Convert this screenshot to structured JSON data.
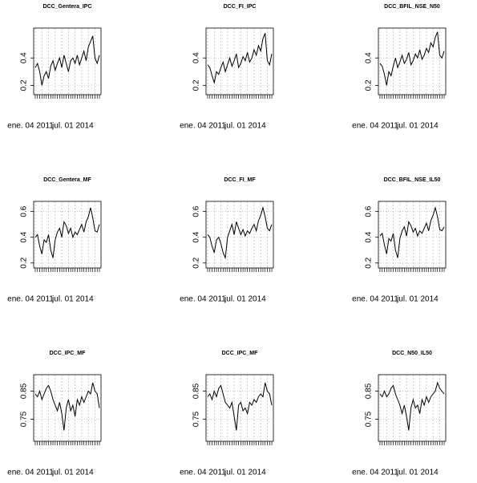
{
  "chart_data": [
    {
      "type": "line",
      "title": "DCC_Gentera_IPC",
      "color": "#000000",
      "grid": true,
      "ylim": [
        0.15,
        0.6
      ],
      "yticks": [
        0.2,
        0.4
      ],
      "categories": [
        "ene. 04 2011",
        null,
        null,
        null,
        null,
        null,
        null,
        null,
        null,
        null,
        null,
        null,
        null,
        null,
        null,
        null,
        null,
        "jul. 01 2014",
        null,
        null,
        null,
        null,
        null,
        null,
        null,
        null,
        null,
        null,
        null,
        null
      ],
      "values": [
        0.33,
        0.36,
        0.3,
        0.2,
        0.27,
        0.3,
        0.25,
        0.34,
        0.38,
        0.31,
        0.36,
        0.4,
        0.33,
        0.42,
        0.36,
        0.3,
        0.38,
        0.4,
        0.36,
        0.42,
        0.35,
        0.4,
        0.45,
        0.38,
        0.48,
        0.52,
        0.56,
        0.4,
        0.36,
        0.42
      ]
    },
    {
      "type": "line",
      "title": "DCC_FI_IPC",
      "color": "#000000",
      "grid": true,
      "ylim": [
        0.15,
        0.6
      ],
      "yticks": [
        0.2,
        0.4
      ],
      "categories": [
        "ene. 04 2011",
        null,
        null,
        null,
        null,
        null,
        null,
        null,
        null,
        null,
        null,
        null,
        null,
        null,
        null,
        null,
        null,
        "jul. 01 2014",
        null,
        null,
        null,
        null,
        null,
        null,
        null,
        null,
        null,
        null,
        null,
        null
      ],
      "values": [
        0.35,
        0.33,
        0.27,
        0.22,
        0.3,
        0.28,
        0.33,
        0.37,
        0.3,
        0.35,
        0.4,
        0.34,
        0.38,
        0.43,
        0.33,
        0.36,
        0.41,
        0.38,
        0.44,
        0.37,
        0.4,
        0.46,
        0.42,
        0.49,
        0.45,
        0.54,
        0.58,
        0.38,
        0.35,
        0.43
      ]
    },
    {
      "type": "line",
      "title": "DCC_BFIL_NSE_N50",
      "color": "#000000",
      "grid": true,
      "ylim": [
        0.15,
        0.6
      ],
      "yticks": [
        0.2,
        0.4
      ],
      "categories": [
        "ene. 04 2011",
        null,
        null,
        null,
        null,
        null,
        null,
        null,
        null,
        null,
        null,
        null,
        null,
        null,
        null,
        null,
        null,
        "jul. 01 2014",
        null,
        null,
        null,
        null,
        null,
        null,
        null,
        null,
        null,
        null,
        null,
        null
      ],
      "values": [
        0.36,
        0.34,
        0.28,
        0.2,
        0.3,
        0.27,
        0.34,
        0.4,
        0.33,
        0.37,
        0.42,
        0.36,
        0.39,
        0.44,
        0.35,
        0.38,
        0.43,
        0.4,
        0.46,
        0.39,
        0.42,
        0.47,
        0.44,
        0.51,
        0.48,
        0.55,
        0.59,
        0.42,
        0.4,
        0.45
      ]
    },
    {
      "type": "line",
      "title": "DCC_Gentera_MF",
      "color": "#000000",
      "grid": true,
      "ylim": [
        0.18,
        0.66
      ],
      "yticks": [
        0.2,
        0.4,
        0.6
      ],
      "categories": [
        "ene. 04 2011",
        null,
        null,
        null,
        null,
        null,
        null,
        null,
        null,
        null,
        null,
        null,
        null,
        null,
        null,
        null,
        null,
        "jul. 01 2014",
        null,
        null,
        null,
        null,
        null,
        null,
        null,
        null,
        null,
        null,
        null,
        null
      ],
      "values": [
        0.4,
        0.42,
        0.33,
        0.27,
        0.38,
        0.36,
        0.42,
        0.3,
        0.24,
        0.38,
        0.44,
        0.47,
        0.4,
        0.52,
        0.49,
        0.43,
        0.47,
        0.4,
        0.44,
        0.42,
        0.46,
        0.5,
        0.44,
        0.52,
        0.56,
        0.63,
        0.55,
        0.45,
        0.44,
        0.5
      ]
    },
    {
      "type": "line",
      "title": "DCC_FI_MF",
      "color": "#000000",
      "grid": true,
      "ylim": [
        0.18,
        0.66
      ],
      "yticks": [
        0.2,
        0.4,
        0.6
      ],
      "categories": [
        "ene. 04 2011",
        null,
        null,
        null,
        null,
        null,
        null,
        null,
        null,
        null,
        null,
        null,
        null,
        null,
        null,
        null,
        null,
        "jul. 01 2014",
        null,
        null,
        null,
        null,
        null,
        null,
        null,
        null,
        null,
        null,
        null,
        null
      ],
      "values": [
        0.42,
        0.4,
        0.33,
        0.28,
        0.38,
        0.4,
        0.35,
        0.28,
        0.24,
        0.4,
        0.45,
        0.5,
        0.42,
        0.52,
        0.47,
        0.42,
        0.46,
        0.41,
        0.45,
        0.43,
        0.47,
        0.5,
        0.45,
        0.53,
        0.57,
        0.63,
        0.56,
        0.47,
        0.45,
        0.5
      ]
    },
    {
      "type": "line",
      "title": "DCC_BFIL_NSE_IL50",
      "color": "#000000",
      "grid": true,
      "ylim": [
        0.18,
        0.66
      ],
      "yticks": [
        0.2,
        0.4,
        0.6
      ],
      "categories": [
        "ene. 04 2011",
        null,
        null,
        null,
        null,
        null,
        null,
        null,
        null,
        null,
        null,
        null,
        null,
        null,
        null,
        null,
        null,
        "jul. 01 2014",
        null,
        null,
        null,
        null,
        null,
        null,
        null,
        null,
        null,
        null,
        null,
        null
      ],
      "values": [
        0.41,
        0.43,
        0.34,
        0.27,
        0.39,
        0.37,
        0.43,
        0.3,
        0.24,
        0.39,
        0.45,
        0.48,
        0.41,
        0.52,
        0.49,
        0.44,
        0.47,
        0.41,
        0.45,
        0.43,
        0.47,
        0.51,
        0.45,
        0.53,
        0.57,
        0.63,
        0.56,
        0.46,
        0.45,
        0.48
      ]
    },
    {
      "type": "line",
      "title": "DCC_IPC_MF",
      "color": "#000000",
      "grid": true,
      "ylim": [
        0.68,
        0.9
      ],
      "yticks": [
        0.75,
        0.85
      ],
      "categories": [
        "ene. 04 2011",
        null,
        null,
        null,
        null,
        null,
        null,
        null,
        null,
        null,
        null,
        null,
        null,
        null,
        null,
        null,
        null,
        "jul. 01 2014",
        null,
        null,
        null,
        null,
        null,
        null,
        null,
        null,
        null,
        null,
        null,
        null
      ],
      "values": [
        0.84,
        0.83,
        0.85,
        0.82,
        0.84,
        0.86,
        0.87,
        0.85,
        0.82,
        0.8,
        0.78,
        0.81,
        0.77,
        0.71,
        0.79,
        0.82,
        0.78,
        0.8,
        0.76,
        0.82,
        0.8,
        0.83,
        0.81,
        0.83,
        0.85,
        0.84,
        0.88,
        0.85,
        0.84,
        0.79
      ]
    },
    {
      "type": "line",
      "title": "DCC_IPC_MF",
      "color": "#000000",
      "grid": true,
      "ylim": [
        0.68,
        0.9
      ],
      "yticks": [
        0.75,
        0.85
      ],
      "categories": [
        "ene. 04 2011",
        null,
        null,
        null,
        null,
        null,
        null,
        null,
        null,
        null,
        null,
        null,
        null,
        null,
        null,
        null,
        null,
        "jul. 01 2014",
        null,
        null,
        null,
        null,
        null,
        null,
        null,
        null,
        null,
        null,
        null,
        null
      ],
      "values": [
        0.83,
        0.84,
        0.82,
        0.85,
        0.83,
        0.86,
        0.87,
        0.84,
        0.81,
        0.8,
        0.79,
        0.81,
        0.76,
        0.71,
        0.8,
        0.81,
        0.78,
        0.79,
        0.77,
        0.81,
        0.8,
        0.82,
        0.81,
        0.83,
        0.84,
        0.83,
        0.88,
        0.85,
        0.84,
        0.8
      ]
    },
    {
      "type": "line",
      "title": "DCC_N50_IL50",
      "color": "#000000",
      "grid": true,
      "ylim": [
        0.68,
        0.9
      ],
      "yticks": [
        0.75,
        0.85
      ],
      "categories": [
        "ene. 04 2011",
        null,
        null,
        null,
        null,
        null,
        null,
        null,
        null,
        null,
        null,
        null,
        null,
        null,
        null,
        null,
        null,
        "jul. 01 2014",
        null,
        null,
        null,
        null,
        null,
        null,
        null,
        null,
        null,
        null,
        null,
        null
      ],
      "values": [
        0.84,
        0.83,
        0.85,
        0.83,
        0.84,
        0.86,
        0.87,
        0.84,
        0.82,
        0.8,
        0.77,
        0.8,
        0.76,
        0.71,
        0.79,
        0.82,
        0.79,
        0.8,
        0.77,
        0.82,
        0.8,
        0.83,
        0.81,
        0.83,
        0.84,
        0.85,
        0.88,
        0.86,
        0.85,
        0.84
      ]
    }
  ]
}
